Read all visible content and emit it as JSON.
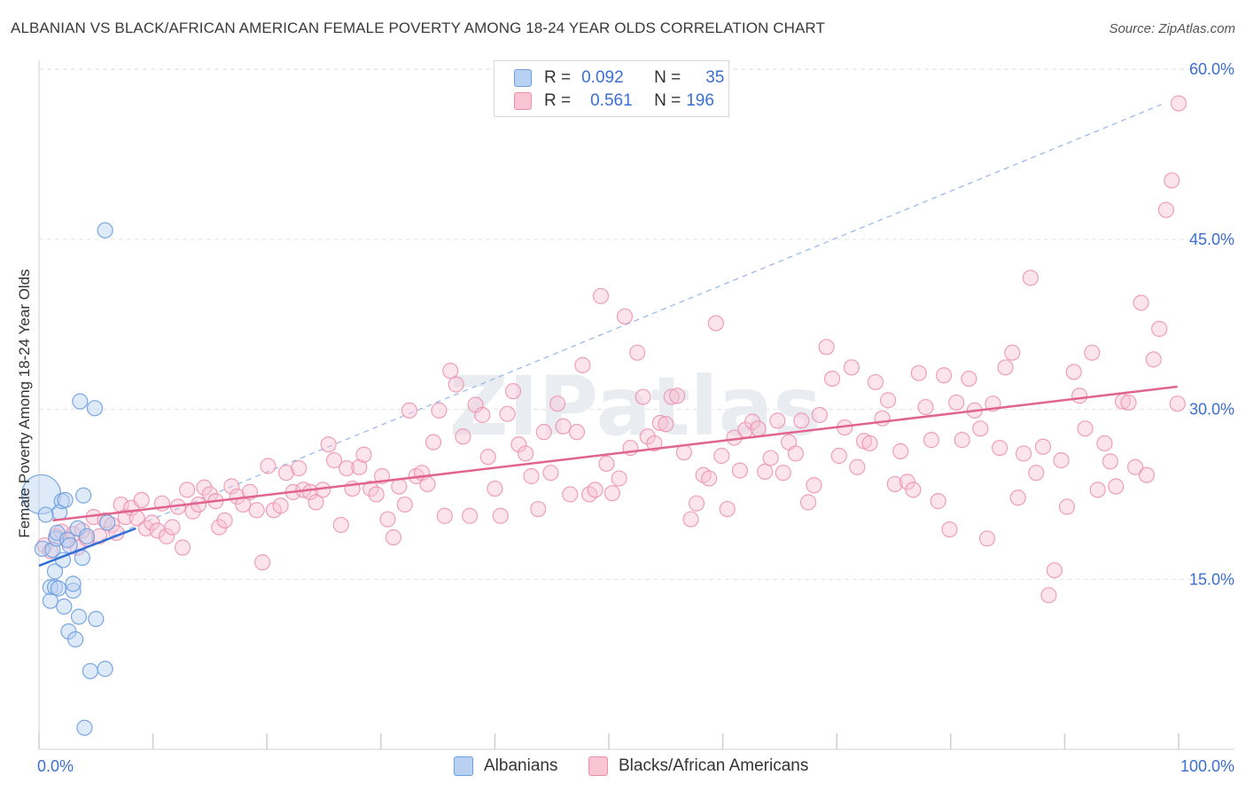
{
  "title": "ALBANIAN VS BLACK/AFRICAN AMERICAN FEMALE POVERTY AMONG 18-24 YEAR OLDS CORRELATION CHART",
  "source": "Source: ZipAtlas.com",
  "watermark": "ZIPatlas",
  "legend": {
    "r_label": "R =",
    "n_label": "N =",
    "rows": [
      {
        "name": "Albanians",
        "r": "0.092",
        "n": "35",
        "fill": "#b8d0f2",
        "stroke": "#6c9fe0"
      },
      {
        "name": "Blacks/African Americans",
        "r": "0.561",
        "n": "196",
        "fill": "#f9c4d4",
        "stroke": "#ec8fab"
      }
    ]
  },
  "chart_data": {
    "type": "scatter",
    "title": "ALBANIAN VS BLACK/AFRICAN AMERICAN FEMALE POVERTY AMONG 18-24 YEAR OLDS CORRELATION CHART",
    "xlabel": "",
    "ylabel": "Female Poverty Among 18-24 Year Olds",
    "xlim": [
      0,
      100
    ],
    "ylim": [
      0,
      61.5
    ],
    "x_tick_labels": [
      "0.0%",
      "100.0%"
    ],
    "y_ticks": [
      15,
      30,
      45,
      60
    ],
    "y_tick_labels": [
      "15.0%",
      "30.0%",
      "45.0%",
      "60.0%"
    ],
    "grid": true,
    "colors": {
      "albanians": "#6c9fe0",
      "blacks": "#ec8fab",
      "albanians_line": "#2f6fd6",
      "blacks_line": "#e0648c",
      "tick_label": "#3b6fd1"
    },
    "series": [
      {
        "name": "Albanians",
        "r": 0.092,
        "n": 35,
        "trend": {
          "x": [
            0,
            8.5
          ],
          "y": [
            16.2,
            19.5
          ]
        },
        "trend_extended": {
          "x": [
            0,
            98.5
          ],
          "y": [
            16.2,
            56.9
          ]
        },
        "points": [
          {
            "x": 0.2,
            "y": 22.5,
            "big": true
          },
          {
            "x": 0.3,
            "y": 17.7
          },
          {
            "x": 0.6,
            "y": 20.7
          },
          {
            "x": 1.0,
            "y": 14.3
          },
          {
            "x": 1.0,
            "y": 13.1
          },
          {
            "x": 1.2,
            "y": 17.6
          },
          {
            "x": 1.4,
            "y": 15.7
          },
          {
            "x": 1.4,
            "y": 14.3
          },
          {
            "x": 1.5,
            "y": 18.6
          },
          {
            "x": 1.6,
            "y": 19.1
          },
          {
            "x": 1.7,
            "y": 14.2
          },
          {
            "x": 1.8,
            "y": 20.9
          },
          {
            "x": 2.0,
            "y": 21.9
          },
          {
            "x": 2.1,
            "y": 16.7
          },
          {
            "x": 2.2,
            "y": 12.6
          },
          {
            "x": 2.3,
            "y": 22.0
          },
          {
            "x": 2.5,
            "y": 18.5
          },
          {
            "x": 2.6,
            "y": 10.4
          },
          {
            "x": 2.7,
            "y": 18.0
          },
          {
            "x": 3.0,
            "y": 14.0
          },
          {
            "x": 3.0,
            "y": 14.6
          },
          {
            "x": 3.2,
            "y": 9.7
          },
          {
            "x": 3.4,
            "y": 19.5
          },
          {
            "x": 3.5,
            "y": 11.7
          },
          {
            "x": 3.6,
            "y": 30.7
          },
          {
            "x": 3.8,
            "y": 16.9
          },
          {
            "x": 3.9,
            "y": 22.4
          },
          {
            "x": 4.0,
            "y": 1.9
          },
          {
            "x": 4.2,
            "y": 18.8
          },
          {
            "x": 4.5,
            "y": 6.9
          },
          {
            "x": 4.9,
            "y": 30.1
          },
          {
            "x": 5.0,
            "y": 11.5
          },
          {
            "x": 5.8,
            "y": 7.1
          },
          {
            "x": 5.8,
            "y": 45.8
          },
          {
            "x": 6.0,
            "y": 20.0
          }
        ]
      },
      {
        "name": "Blacks/African Americans",
        "r": 0.561,
        "n": 196,
        "trend": {
          "x": [
            1.2,
            99.9
          ],
          "y": [
            20.2,
            32.0
          ]
        },
        "points": [
          {
            "x": 0.5,
            "y": 18.0
          },
          {
            "x": 1.0,
            "y": 17.5
          },
          {
            "x": 1.5,
            "y": 18.8
          },
          {
            "x": 2.0,
            "y": 19.2
          },
          {
            "x": 2.5,
            "y": 18.4
          },
          {
            "x": 3.0,
            "y": 19.0
          },
          {
            "x": 3.4,
            "y": 17.8
          },
          {
            "x": 3.8,
            "y": 19.3
          },
          {
            "x": 4.2,
            "y": 18.6
          },
          {
            "x": 4.8,
            "y": 20.5
          },
          {
            "x": 5.3,
            "y": 18.8
          },
          {
            "x": 5.8,
            "y": 20.2
          },
          {
            "x": 6.4,
            "y": 19.8
          },
          {
            "x": 6.8,
            "y": 19.1
          },
          {
            "x": 7.2,
            "y": 21.6
          },
          {
            "x": 7.6,
            "y": 20.5
          },
          {
            "x": 8.1,
            "y": 21.3
          },
          {
            "x": 8.6,
            "y": 20.4
          },
          {
            "x": 9.0,
            "y": 22.0
          },
          {
            "x": 9.4,
            "y": 19.5
          },
          {
            "x": 9.9,
            "y": 20.0
          },
          {
            "x": 10.4,
            "y": 19.3
          },
          {
            "x": 10.8,
            "y": 21.7
          },
          {
            "x": 11.2,
            "y": 18.8
          },
          {
            "x": 11.7,
            "y": 19.6
          },
          {
            "x": 12.2,
            "y": 21.4
          },
          {
            "x": 12.6,
            "y": 17.8
          },
          {
            "x": 13.0,
            "y": 22.9
          },
          {
            "x": 13.5,
            "y": 21.0
          },
          {
            "x": 14.0,
            "y": 21.6
          },
          {
            "x": 14.5,
            "y": 23.1
          },
          {
            "x": 15.0,
            "y": 22.5
          },
          {
            "x": 15.5,
            "y": 21.9
          },
          {
            "x": 15.8,
            "y": 19.6
          },
          {
            "x": 16.3,
            "y": 20.2
          },
          {
            "x": 16.9,
            "y": 23.2
          },
          {
            "x": 17.4,
            "y": 22.3
          },
          {
            "x": 17.9,
            "y": 21.6
          },
          {
            "x": 18.5,
            "y": 22.7
          },
          {
            "x": 19.1,
            "y": 21.1
          },
          {
            "x": 19.6,
            "y": 16.5
          },
          {
            "x": 20.1,
            "y": 25.0
          },
          {
            "x": 20.6,
            "y": 21.1
          },
          {
            "x": 21.2,
            "y": 21.5
          },
          {
            "x": 21.7,
            "y": 24.4
          },
          {
            "x": 22.3,
            "y": 22.7
          },
          {
            "x": 22.8,
            "y": 24.8
          },
          {
            "x": 23.2,
            "y": 22.9
          },
          {
            "x": 23.8,
            "y": 22.7
          },
          {
            "x": 24.3,
            "y": 21.8
          },
          {
            "x": 24.9,
            "y": 22.9
          },
          {
            "x": 25.4,
            "y": 26.9
          },
          {
            "x": 25.9,
            "y": 25.5
          },
          {
            "x": 26.5,
            "y": 19.8
          },
          {
            "x": 27.0,
            "y": 24.8
          },
          {
            "x": 27.5,
            "y": 23.0
          },
          {
            "x": 28.1,
            "y": 24.9
          },
          {
            "x": 28.5,
            "y": 26.0
          },
          {
            "x": 29.1,
            "y": 23.0
          },
          {
            "x": 29.6,
            "y": 22.5
          },
          {
            "x": 30.1,
            "y": 24.1
          },
          {
            "x": 30.6,
            "y": 20.3
          },
          {
            "x": 31.1,
            "y": 18.7
          },
          {
            "x": 31.6,
            "y": 23.2
          },
          {
            "x": 32.1,
            "y": 21.6
          },
          {
            "x": 32.5,
            "y": 29.9
          },
          {
            "x": 33.1,
            "y": 24.1
          },
          {
            "x": 33.6,
            "y": 24.4
          },
          {
            "x": 34.1,
            "y": 23.4
          },
          {
            "x": 34.6,
            "y": 27.1
          },
          {
            "x": 35.1,
            "y": 29.9
          },
          {
            "x": 35.6,
            "y": 20.6
          },
          {
            "x": 36.1,
            "y": 33.4
          },
          {
            "x": 36.6,
            "y": 32.2
          },
          {
            "x": 37.2,
            "y": 27.6
          },
          {
            "x": 37.8,
            "y": 20.6
          },
          {
            "x": 38.3,
            "y": 30.4
          },
          {
            "x": 38.9,
            "y": 29.5
          },
          {
            "x": 39.4,
            "y": 25.8
          },
          {
            "x": 40.0,
            "y": 23.0
          },
          {
            "x": 40.5,
            "y": 20.6
          },
          {
            "x": 41.1,
            "y": 29.6
          },
          {
            "x": 41.6,
            "y": 31.6
          },
          {
            "x": 42.1,
            "y": 26.9
          },
          {
            "x": 42.7,
            "y": 26.1
          },
          {
            "x": 43.2,
            "y": 24.1
          },
          {
            "x": 43.8,
            "y": 21.2
          },
          {
            "x": 44.3,
            "y": 28.0
          },
          {
            "x": 44.9,
            "y": 24.4
          },
          {
            "x": 45.5,
            "y": 30.5
          },
          {
            "x": 46.0,
            "y": 28.5
          },
          {
            "x": 46.6,
            "y": 22.5
          },
          {
            "x": 47.2,
            "y": 28.0
          },
          {
            "x": 47.7,
            "y": 33.9
          },
          {
            "x": 48.3,
            "y": 22.5
          },
          {
            "x": 48.8,
            "y": 22.9
          },
          {
            "x": 49.3,
            "y": 40.0
          },
          {
            "x": 49.8,
            "y": 25.2
          },
          {
            "x": 50.3,
            "y": 22.6
          },
          {
            "x": 50.9,
            "y": 23.9
          },
          {
            "x": 51.4,
            "y": 38.2
          },
          {
            "x": 51.9,
            "y": 26.6
          },
          {
            "x": 52.5,
            "y": 35.0
          },
          {
            "x": 53.0,
            "y": 31.1
          },
          {
            "x": 53.4,
            "y": 27.6
          },
          {
            "x": 54.0,
            "y": 27.0
          },
          {
            "x": 54.5,
            "y": 28.8
          },
          {
            "x": 55.0,
            "y": 28.7
          },
          {
            "x": 55.5,
            "y": 31.1
          },
          {
            "x": 56.0,
            "y": 31.2
          },
          {
            "x": 56.6,
            "y": 26.2
          },
          {
            "x": 57.2,
            "y": 20.3
          },
          {
            "x": 57.7,
            "y": 21.7
          },
          {
            "x": 58.3,
            "y": 24.2
          },
          {
            "x": 58.8,
            "y": 23.9
          },
          {
            "x": 59.4,
            "y": 37.6
          },
          {
            "x": 59.9,
            "y": 25.9
          },
          {
            "x": 60.4,
            "y": 21.2
          },
          {
            "x": 61.0,
            "y": 27.5
          },
          {
            "x": 61.5,
            "y": 24.6
          },
          {
            "x": 62.0,
            "y": 28.2
          },
          {
            "x": 62.6,
            "y": 28.9
          },
          {
            "x": 63.1,
            "y": 28.3
          },
          {
            "x": 63.7,
            "y": 24.5
          },
          {
            "x": 64.2,
            "y": 25.7
          },
          {
            "x": 64.8,
            "y": 29.0
          },
          {
            "x": 65.3,
            "y": 24.4
          },
          {
            "x": 65.8,
            "y": 27.1
          },
          {
            "x": 66.4,
            "y": 26.1
          },
          {
            "x": 66.9,
            "y": 29.0
          },
          {
            "x": 67.5,
            "y": 21.8
          },
          {
            "x": 68.0,
            "y": 23.3
          },
          {
            "x": 68.5,
            "y": 29.5
          },
          {
            "x": 69.1,
            "y": 35.5
          },
          {
            "x": 69.6,
            "y": 32.7
          },
          {
            "x": 70.2,
            "y": 25.9
          },
          {
            "x": 70.7,
            "y": 28.4
          },
          {
            "x": 71.3,
            "y": 33.7
          },
          {
            "x": 71.8,
            "y": 24.9
          },
          {
            "x": 72.4,
            "y": 27.2
          },
          {
            "x": 72.9,
            "y": 27.0
          },
          {
            "x": 73.4,
            "y": 32.4
          },
          {
            "x": 74.0,
            "y": 29.2
          },
          {
            "x": 74.5,
            "y": 30.8
          },
          {
            "x": 75.1,
            "y": 23.4
          },
          {
            "x": 75.6,
            "y": 26.3
          },
          {
            "x": 76.2,
            "y": 23.6
          },
          {
            "x": 76.7,
            "y": 22.9
          },
          {
            "x": 77.2,
            "y": 33.2
          },
          {
            "x": 77.8,
            "y": 30.2
          },
          {
            "x": 78.3,
            "y": 27.3
          },
          {
            "x": 78.9,
            "y": 21.9
          },
          {
            "x": 79.4,
            "y": 33.0
          },
          {
            "x": 79.9,
            "y": 19.4
          },
          {
            "x": 80.5,
            "y": 30.6
          },
          {
            "x": 81.0,
            "y": 27.3
          },
          {
            "x": 81.6,
            "y": 32.7
          },
          {
            "x": 82.1,
            "y": 29.9
          },
          {
            "x": 82.6,
            "y": 28.3
          },
          {
            "x": 83.2,
            "y": 18.6
          },
          {
            "x": 83.7,
            "y": 30.5
          },
          {
            "x": 84.3,
            "y": 26.6
          },
          {
            "x": 84.8,
            "y": 33.7
          },
          {
            "x": 85.4,
            "y": 35.0
          },
          {
            "x": 85.9,
            "y": 22.2
          },
          {
            "x": 86.4,
            "y": 26.1
          },
          {
            "x": 87.0,
            "y": 41.6
          },
          {
            "x": 87.5,
            "y": 24.4
          },
          {
            "x": 88.1,
            "y": 26.7
          },
          {
            "x": 88.6,
            "y": 13.6
          },
          {
            "x": 89.1,
            "y": 15.8
          },
          {
            "x": 89.7,
            "y": 25.5
          },
          {
            "x": 90.2,
            "y": 21.4
          },
          {
            "x": 90.8,
            "y": 33.3
          },
          {
            "x": 91.3,
            "y": 31.2
          },
          {
            "x": 91.8,
            "y": 28.3
          },
          {
            "x": 92.4,
            "y": 35.0
          },
          {
            "x": 92.9,
            "y": 22.9
          },
          {
            "x": 93.5,
            "y": 27.0
          },
          {
            "x": 94.0,
            "y": 25.4
          },
          {
            "x": 94.5,
            "y": 23.2
          },
          {
            "x": 95.1,
            "y": 30.7
          },
          {
            "x": 95.6,
            "y": 30.6
          },
          {
            "x": 96.2,
            "y": 24.9
          },
          {
            "x": 96.7,
            "y": 39.4
          },
          {
            "x": 97.2,
            "y": 24.2
          },
          {
            "x": 97.8,
            "y": 34.4
          },
          {
            "x": 98.3,
            "y": 37.1
          },
          {
            "x": 98.9,
            "y": 47.6
          },
          {
            "x": 99.4,
            "y": 50.2
          },
          {
            "x": 99.9,
            "y": 30.5
          },
          {
            "x": 100.0,
            "y": 57.0
          }
        ]
      }
    ]
  }
}
